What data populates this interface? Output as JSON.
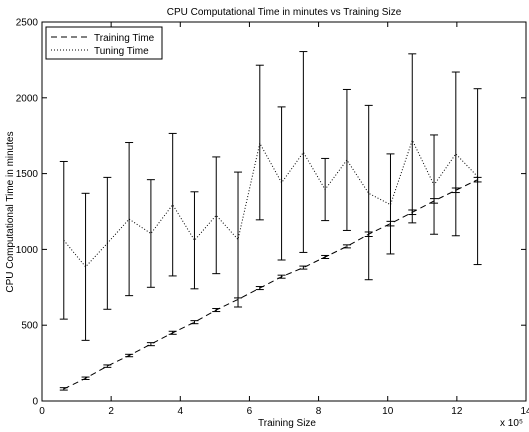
{
  "chart_data": {
    "type": "line",
    "title": "CPU Computational Time in minutes vs Training Size",
    "xlabel": "Training Size",
    "ylabel": "CPU Computational Time in minutes",
    "x_multiplier_label": "x 10⁵",
    "xlim": [
      0,
      14
    ],
    "ylim": [
      0,
      2500
    ],
    "xticks": [
      0,
      2,
      4,
      6,
      8,
      10,
      12,
      14
    ],
    "yticks": [
      0,
      500,
      1000,
      1500,
      2000,
      2500
    ],
    "grid": false,
    "legend_position": "top-left",
    "x": [
      0.63,
      1.26,
      1.89,
      2.52,
      3.15,
      3.78,
      4.41,
      5.04,
      5.67,
      6.3,
      6.93,
      7.56,
      8.19,
      8.82,
      9.45,
      10.08,
      10.71,
      11.34,
      11.97,
      12.6
    ],
    "series": [
      {
        "name": "Training Time",
        "style": "dashed",
        "color": "#000000",
        "values": [
          80,
          150,
          230,
          300,
          375,
          450,
          520,
          600,
          670,
          745,
          820,
          880,
          950,
          1020,
          1100,
          1170,
          1245,
          1320,
          1390,
          1460
        ],
        "err_lower": [
          8,
          8,
          8,
          8,
          10,
          10,
          10,
          10,
          50,
          10,
          10,
          10,
          10,
          10,
          15,
          15,
          15,
          15,
          15,
          15
        ],
        "err_upper": [
          8,
          8,
          8,
          8,
          10,
          10,
          10,
          10,
          10,
          10,
          10,
          10,
          10,
          10,
          15,
          15,
          15,
          15,
          15,
          15
        ]
      },
      {
        "name": "Tuning Time",
        "style": "dotted",
        "color": "#000000",
        "values": [
          1060,
          885,
          1040,
          1200,
          1105,
          1295,
          1060,
          1225,
          1065,
          1700,
          1440,
          1640,
          1395,
          1590,
          1370,
          1295,
          1720,
          1425,
          1630,
          1480
        ],
        "err_lower": [
          520,
          485,
          435,
          505,
          355,
          470,
          320,
          385,
          445,
          505,
          510,
          660,
          205,
          465,
          570,
          325,
          545,
          325,
          540,
          580
        ],
        "err_upper": [
          520,
          485,
          435,
          505,
          355,
          470,
          320,
          385,
          445,
          515,
          500,
          665,
          205,
          465,
          580,
          335,
          570,
          330,
          540,
          580
        ]
      }
    ]
  }
}
